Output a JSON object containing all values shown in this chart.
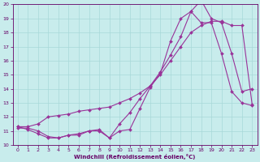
{
  "xlabel": "Windchill (Refroidissement éolien,°C)",
  "ylabel": "",
  "bg_color": "#c8ecec",
  "grid_color": "#a8d8d8",
  "line_color": "#993399",
  "markersize": 2,
  "linewidth": 0.8,
  "xlim": [
    -0.5,
    23.5
  ],
  "ylim": [
    10,
    20
  ],
  "yticks": [
    10,
    11,
    12,
    13,
    14,
    15,
    16,
    17,
    18,
    19,
    20
  ],
  "xticks": [
    0,
    1,
    2,
    3,
    4,
    5,
    6,
    7,
    8,
    9,
    10,
    11,
    12,
    13,
    14,
    15,
    16,
    17,
    18,
    19,
    20,
    21,
    22,
    23
  ],
  "line1_x": [
    0,
    1,
    2,
    3,
    4,
    5,
    6,
    7,
    8,
    9,
    10,
    11,
    12,
    13,
    14,
    15,
    16,
    17,
    18,
    19,
    20,
    21,
    22,
    23
  ],
  "line1_y": [
    11.2,
    11.2,
    11.0,
    10.6,
    10.5,
    10.7,
    10.7,
    11.0,
    11.0,
    10.5,
    11.0,
    11.1,
    12.6,
    14.1,
    15.1,
    17.4,
    19.0,
    19.5,
    18.7,
    18.7,
    16.5,
    13.8,
    13.0,
    12.8
  ],
  "line2_x": [
    0,
    1,
    2,
    3,
    4,
    5,
    6,
    7,
    8,
    9,
    10,
    11,
    12,
    13,
    14,
    15,
    16,
    17,
    18,
    19,
    20,
    21,
    22,
    23
  ],
  "line2_y": [
    11.3,
    11.3,
    11.5,
    12.0,
    12.1,
    12.2,
    12.4,
    12.5,
    12.6,
    12.7,
    13.0,
    13.3,
    13.7,
    14.2,
    15.0,
    16.0,
    17.0,
    18.0,
    18.5,
    18.8,
    18.8,
    18.5,
    18.5,
    12.9
  ],
  "line3_x": [
    0,
    1,
    2,
    3,
    4,
    5,
    6,
    7,
    8,
    9,
    10,
    11,
    12,
    13,
    14,
    15,
    16,
    17,
    18,
    19,
    20,
    21,
    22,
    23
  ],
  "line3_y": [
    11.3,
    11.1,
    10.8,
    10.5,
    10.5,
    10.7,
    10.8,
    11.0,
    11.1,
    10.5,
    11.5,
    12.3,
    13.3,
    14.2,
    15.2,
    16.4,
    17.7,
    19.5,
    20.3,
    19.0,
    18.7,
    16.5,
    13.8,
    14.0
  ]
}
